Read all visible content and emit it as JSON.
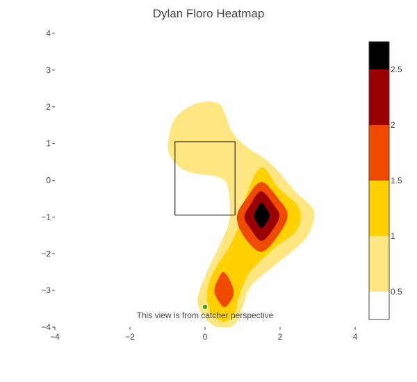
{
  "chart_data": {
    "type": "heatmap",
    "title": "Dylan Floro Heatmap",
    "xlabel": "",
    "ylabel": "",
    "xlim": [
      -4,
      4
    ],
    "ylim": [
      -4,
      4
    ],
    "x_ticks": [
      -4,
      -2,
      0,
      2,
      4
    ],
    "y_ticks": [
      -4,
      -3,
      -2,
      -1,
      0,
      1,
      2,
      3,
      4
    ],
    "x_tick_labels": [
      "−4",
      "−2",
      "0",
      "2",
      "4"
    ],
    "y_tick_labels": [
      "−4",
      "−3",
      "−2",
      "−1",
      "0",
      "1",
      "2",
      "3",
      "4"
    ],
    "grid": false,
    "contour_levels": [
      0.5,
      1,
      1.5,
      2,
      2.5
    ],
    "colorscale": [
      {
        "from": 0.25,
        "to": 0.5,
        "color": "#ffffff"
      },
      {
        "from": 0.5,
        "to": 1.0,
        "color": "#ffe680"
      },
      {
        "from": 1.0,
        "to": 1.5,
        "color": "#ffd100"
      },
      {
        "from": 1.5,
        "to": 2.0,
        "color": "#f04a00"
      },
      {
        "from": 2.0,
        "to": 2.5,
        "color": "#990000"
      },
      {
        "from": 2.5,
        "to": 2.75,
        "color": "#000000"
      }
    ],
    "colorbar": {
      "range": [
        0.25,
        2.75
      ],
      "ticks": [
        0.5,
        1,
        1.5,
        2,
        2.5
      ],
      "tick_labels": [
        "0.5",
        "1",
        "1.5",
        "2",
        "2.5"
      ]
    },
    "density_peaks": [
      {
        "x": 1.55,
        "y": -0.95,
        "value": 2.7
      },
      {
        "x": 0.5,
        "y": -3.0,
        "value": 1.8
      }
    ],
    "strike_zone": {
      "x": [
        -0.8,
        0.8
      ],
      "y": [
        -0.95,
        1.05
      ]
    },
    "marker": {
      "x": 0.0,
      "y": -3.45,
      "color": "#2ca02c"
    },
    "annotation": "This view is from catcher perspective"
  }
}
